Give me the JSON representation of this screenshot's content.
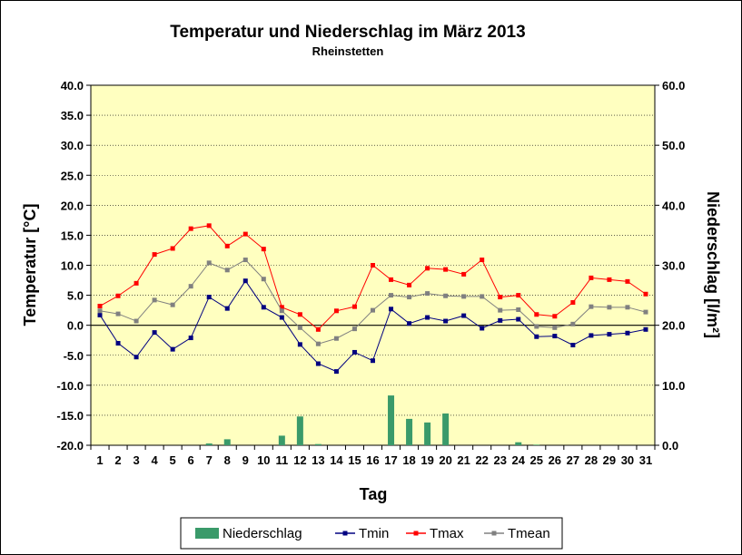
{
  "chart_data": {
    "type": "line",
    "title": "Temperatur und Niederschlag im März 2013",
    "subtitle": "Rheinstetten",
    "xlabel": "Tag",
    "ylabel_left": "Temperatur [°C]",
    "ylabel_right": "Niederschlag [l/m²]",
    "ylim_left": [
      -20,
      40
    ],
    "ylim_right": [
      0,
      60
    ],
    "yticks_left": [
      "40.0",
      "35.0",
      "30.0",
      "25.0",
      "20.0",
      "15.0",
      "10.0",
      "5.0",
      "0.0",
      "-5.0",
      "-10.0",
      "-15.0",
      "-20.0"
    ],
    "yticks_right": [
      "60.0",
      "50.0",
      "40.0",
      "30.0",
      "20.0",
      "10.0",
      "0.0"
    ],
    "x": [
      "1",
      "2",
      "3",
      "4",
      "5",
      "6",
      "7",
      "8",
      "9",
      "10",
      "11",
      "12",
      "13",
      "14",
      "15",
      "16",
      "17",
      "18",
      "19",
      "20",
      "21",
      "22",
      "23",
      "24",
      "25",
      "26",
      "27",
      "28",
      "29",
      "30",
      "31"
    ],
    "grid": "horizontal",
    "legend_position": "bottom",
    "plot_background": "#ffffc0",
    "series": [
      {
        "name": "Niederschlag",
        "kind": "bar",
        "axis": "right",
        "color": "#3a9a6a",
        "values": [
          0,
          0,
          0,
          0,
          0,
          0,
          0.3,
          1.0,
          0,
          0,
          1.6,
          4.8,
          0.2,
          0,
          0,
          0,
          8.3,
          4.4,
          3.8,
          5.3,
          0,
          0,
          0,
          0.5,
          0.1,
          0,
          0,
          0,
          0,
          0,
          0
        ]
      },
      {
        "name": "Tmin",
        "kind": "line",
        "axis": "left",
        "color": "#000080",
        "values": [
          1.7,
          -3.0,
          -5.3,
          -1.2,
          -4.0,
          -2.1,
          4.7,
          2.8,
          7.4,
          3.0,
          1.3,
          -3.2,
          -6.4,
          -7.7,
          -4.5,
          -5.9,
          2.7,
          0.3,
          1.3,
          0.7,
          1.6,
          -0.5,
          0.8,
          1.0,
          -1.9,
          -1.8,
          -3.3,
          -1.7,
          -1.5,
          -1.3,
          -0.7
        ]
      },
      {
        "name": "Tmax",
        "kind": "line",
        "axis": "left",
        "color": "#ff0000",
        "values": [
          3.2,
          4.9,
          7.0,
          11.8,
          12.8,
          16.1,
          16.6,
          13.2,
          15.2,
          12.7,
          3.0,
          1.8,
          -0.7,
          2.4,
          3.1,
          10.0,
          7.6,
          6.7,
          9.5,
          9.3,
          8.5,
          10.9,
          4.7,
          5.0,
          1.8,
          1.5,
          3.8,
          7.9,
          7.6,
          7.3,
          5.2
        ]
      },
      {
        "name": "Tmean",
        "kind": "line",
        "axis": "left",
        "color": "#808080",
        "values": [
          2.4,
          1.9,
          0.7,
          4.2,
          3.4,
          6.5,
          10.4,
          9.2,
          10.9,
          7.7,
          2.4,
          -0.4,
          -3.1,
          -2.2,
          -0.6,
          2.5,
          5.0,
          4.7,
          5.3,
          4.9,
          4.8,
          4.8,
          2.5,
          2.6,
          -0.2,
          -0.4,
          0.2,
          3.1,
          3.0,
          3.0,
          2.2
        ]
      }
    ]
  }
}
